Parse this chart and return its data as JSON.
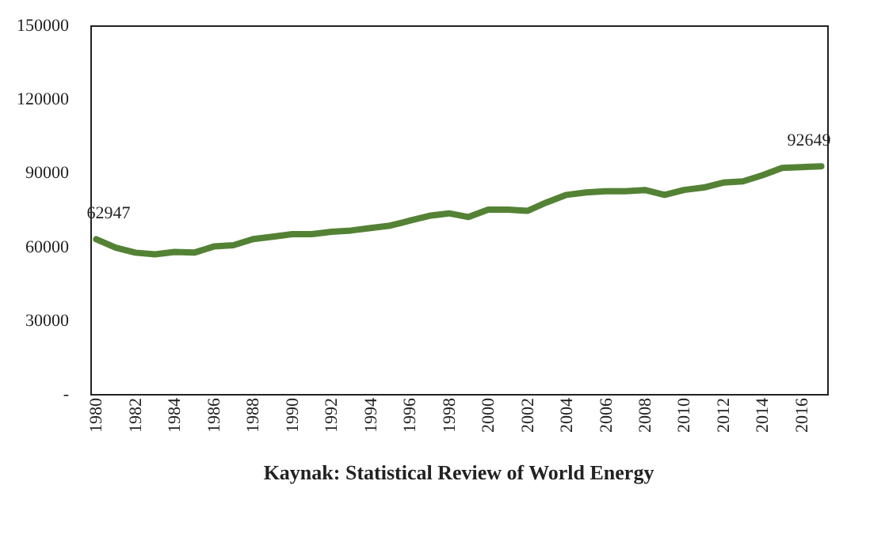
{
  "chart_data": {
    "type": "line",
    "categories": [
      "1980",
      null,
      "1982",
      null,
      "1984",
      null,
      "1986",
      null,
      "1988",
      null,
      "1990",
      null,
      "1992",
      null,
      "1994",
      null,
      "1996",
      null,
      "1998",
      null,
      "2000",
      null,
      "2002",
      null,
      "2004",
      null,
      "2006",
      null,
      "2008",
      null,
      "2010",
      null,
      "2012",
      null,
      "2014",
      null,
      "2016",
      null
    ],
    "series": [
      {
        "color": "#548235",
        "values": [
          62947,
          59500,
          57500,
          56800,
          57800,
          57500,
          60000,
          60500,
          63000,
          64000,
          65000,
          65000,
          66000,
          66500,
          67500,
          68500,
          70500,
          72500,
          73500,
          72000,
          75000,
          75000,
          74500,
          78000,
          81000,
          82000,
          82500,
          82500,
          83000,
          81000,
          83000,
          84000,
          86000,
          86500,
          89000,
          92000,
          92300,
          92649
        ],
        "value_labels": [
          "62947",
          null,
          null,
          null,
          null,
          null,
          null,
          null,
          null,
          null,
          null,
          null,
          null,
          null,
          null,
          null,
          null,
          null,
          null,
          null,
          null,
          null,
          null,
          null,
          null,
          null,
          null,
          null,
          null,
          null,
          null,
          null,
          null,
          null,
          null,
          null,
          null,
          "92649"
        ]
      }
    ],
    "ylim": [
      0,
      150000
    ],
    "yticks": [
      {
        "value": 0,
        "label": "-"
      },
      30000,
      60000,
      90000,
      120000,
      150000
    ],
    "grid": false,
    "marker": "none",
    "line_style": "solid",
    "annotations": [
      "Kaynak: Statistical Review of World Energy"
    ]
  }
}
